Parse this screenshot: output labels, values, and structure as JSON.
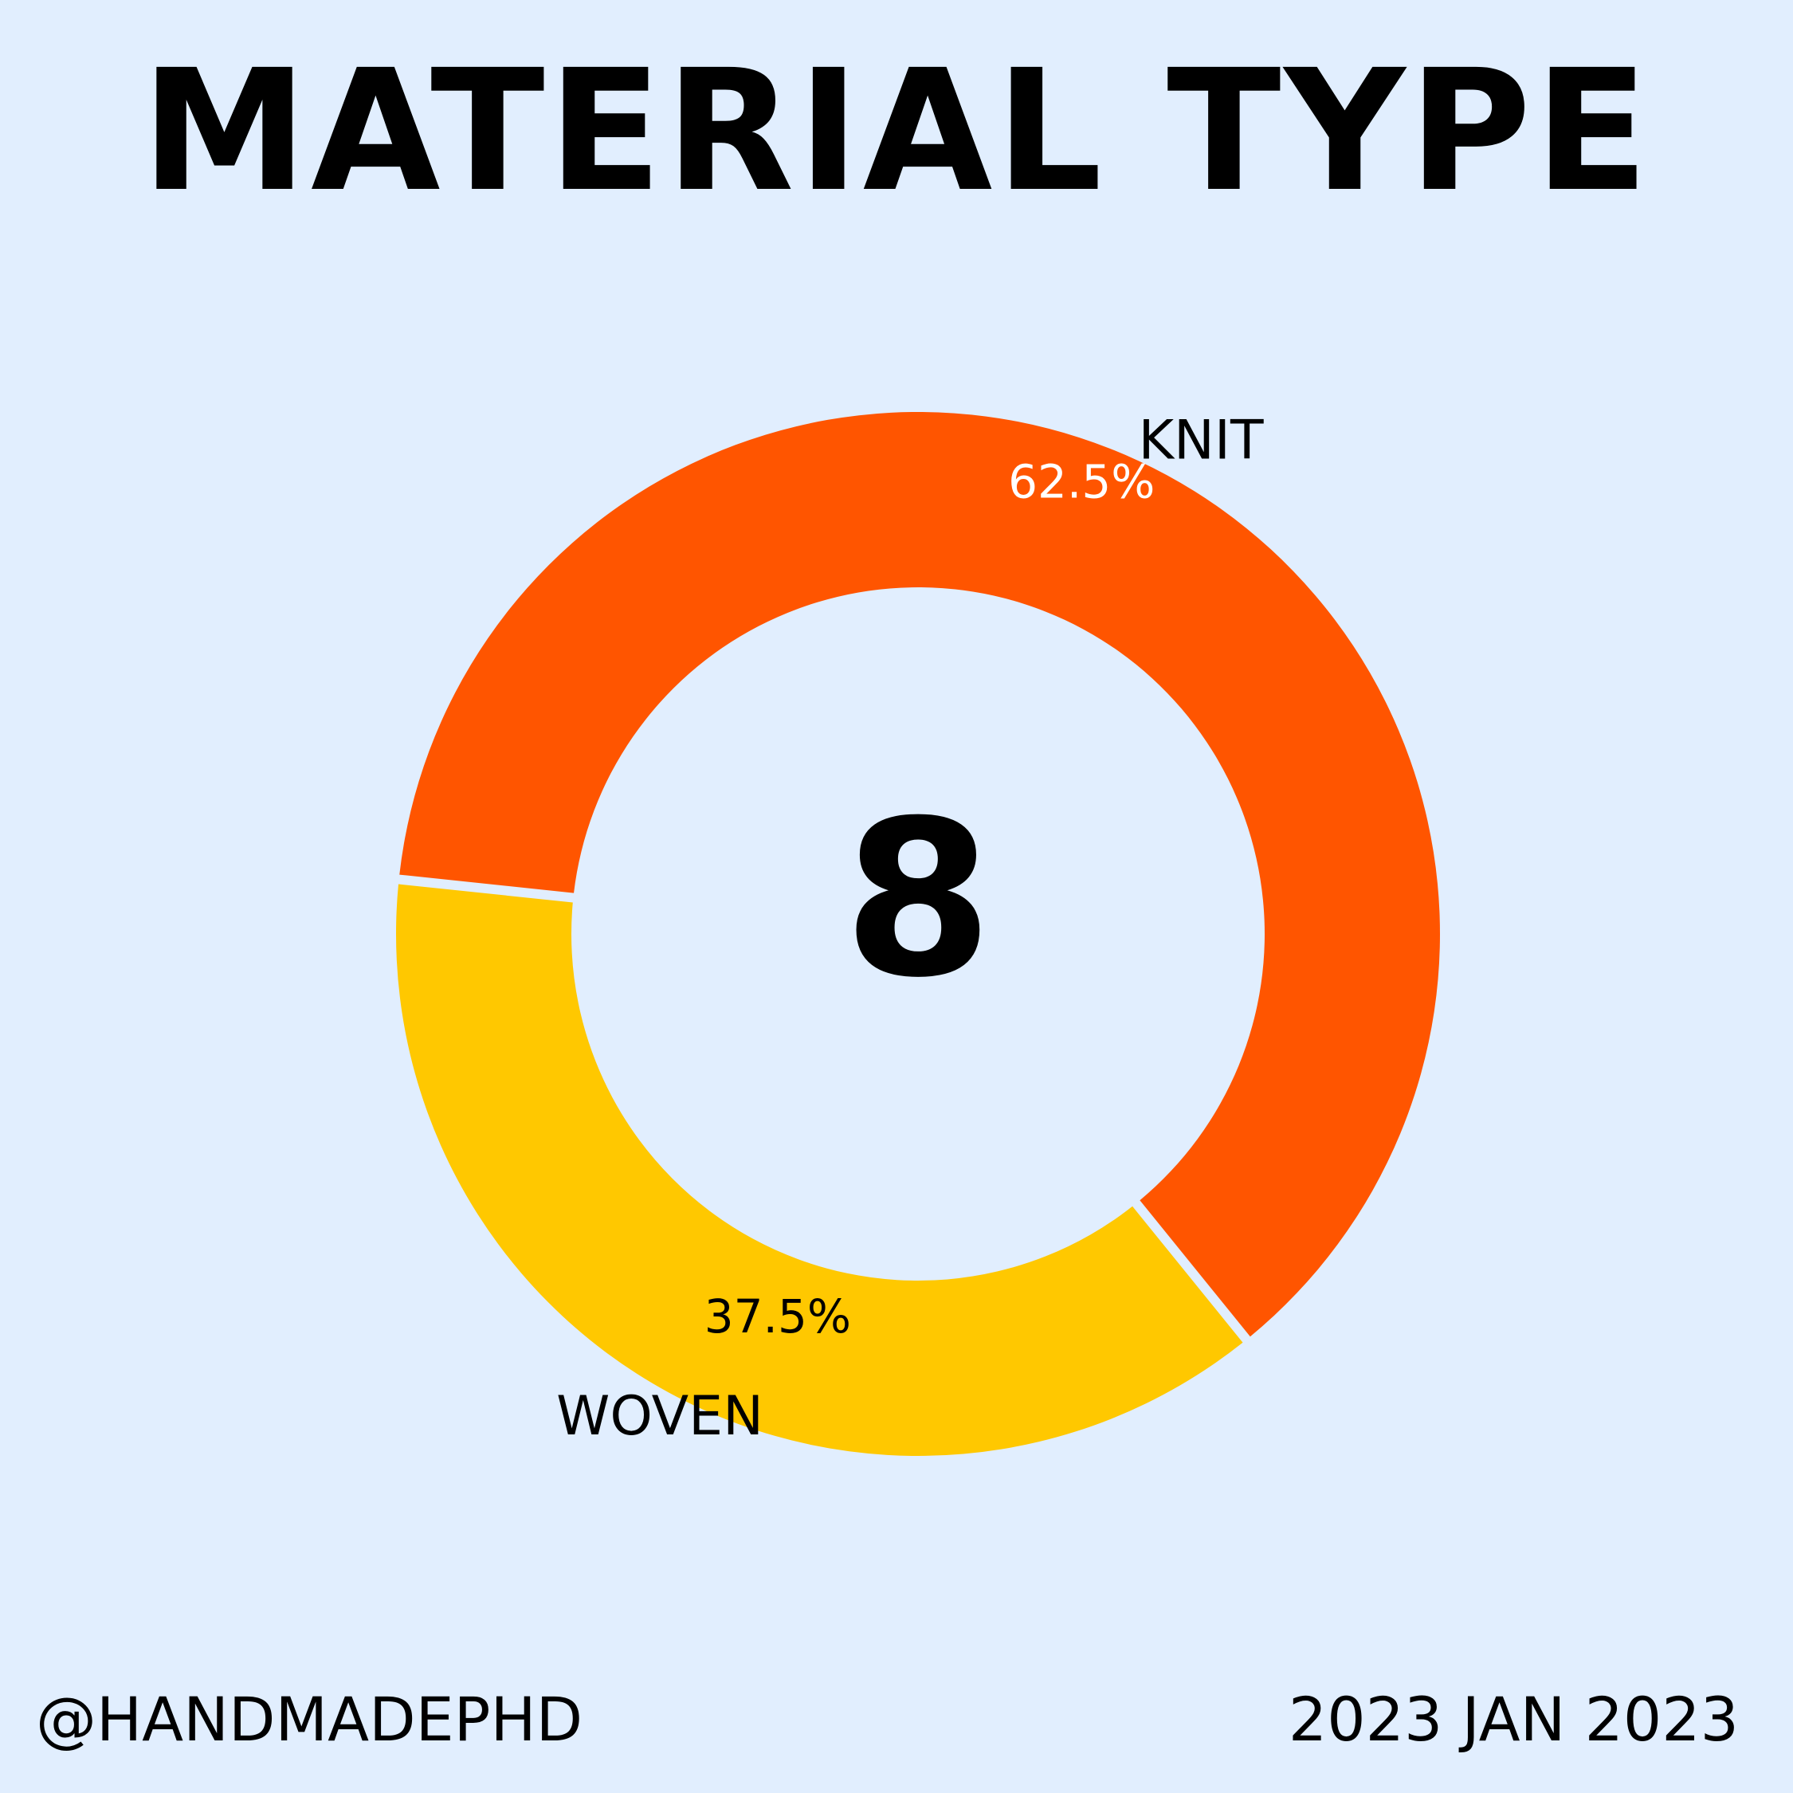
{
  "chart_data": {
    "type": "pie",
    "title": "MATERIAL TYPE",
    "center_label": "8",
    "categories": [
      "KNIT",
      "WOVEN"
    ],
    "values": [
      62.5,
      37.5
    ],
    "value_labels": [
      "62.5%",
      "37.5%"
    ],
    "colors": [
      "#ff5500",
      "#ffc800"
    ],
    "value_label_colors": [
      "#ffffff",
      "#000000"
    ],
    "legend": "none"
  },
  "footer": {
    "handle": "@HANDMADEPHD",
    "date": "2023 JAN 2023"
  }
}
